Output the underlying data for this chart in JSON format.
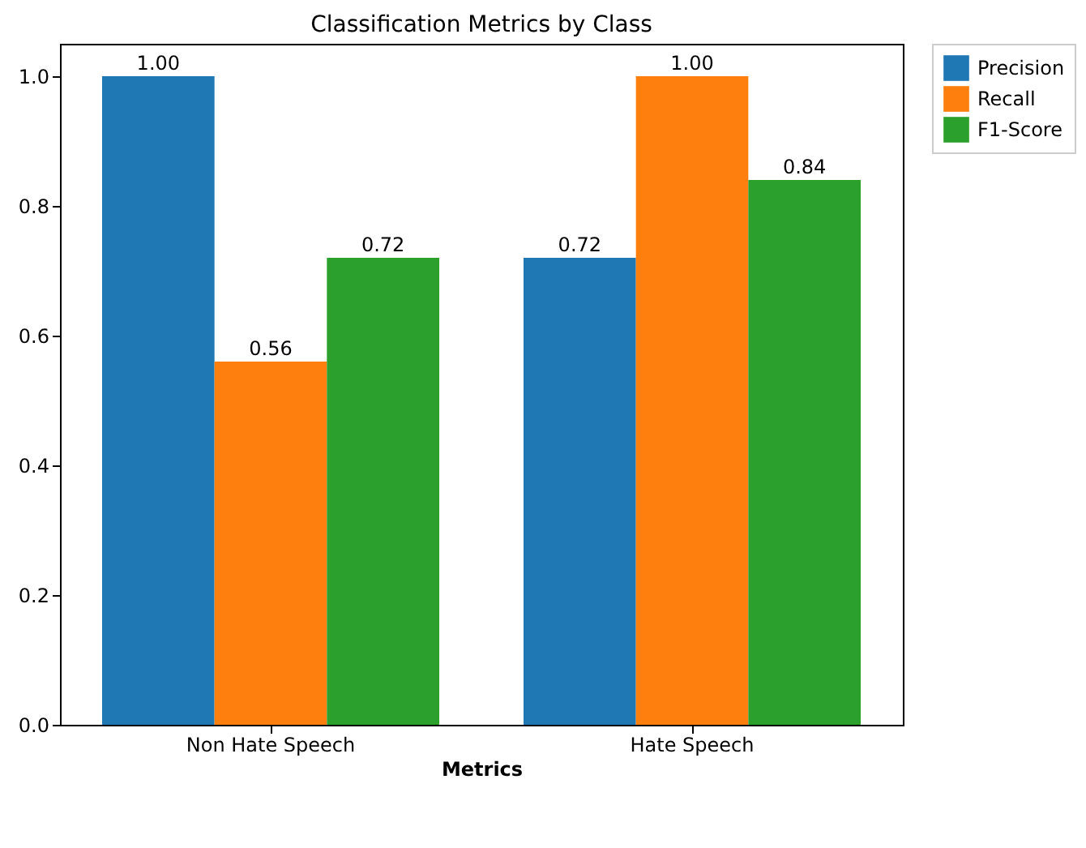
{
  "chart_data": {
    "type": "bar",
    "title": "Classification Metrics by Class",
    "xlabel": "Metrics",
    "categories": [
      "Non Hate Speech",
      "Hate Speech"
    ],
    "series": [
      {
        "name": "Precision",
        "color": "#1f77b4",
        "values": [
          1.0,
          0.72
        ],
        "value_labels": [
          "1.00",
          "0.72"
        ]
      },
      {
        "name": "Recall",
        "color": "#ff7f0e",
        "values": [
          0.56,
          1.0
        ],
        "value_labels": [
          "0.56",
          "1.00"
        ]
      },
      {
        "name": "F1-Score",
        "color": "#2ca02c",
        "values": [
          0.72,
          0.84
        ],
        "value_labels": [
          "0.72",
          "0.84"
        ]
      }
    ],
    "ylim": [
      0,
      1.05
    ],
    "yticks": [
      {
        "value": 0,
        "label": "0.0"
      },
      {
        "value": 0.2,
        "label": "0.2"
      },
      {
        "value": 0.4,
        "label": "0.4"
      },
      {
        "value": 0.6,
        "label": "0.6"
      },
      {
        "value": 0.8,
        "label": "0.8"
      },
      {
        "value": 1.0,
        "label": "1.0"
      }
    ],
    "grid": false,
    "legend": "right"
  }
}
